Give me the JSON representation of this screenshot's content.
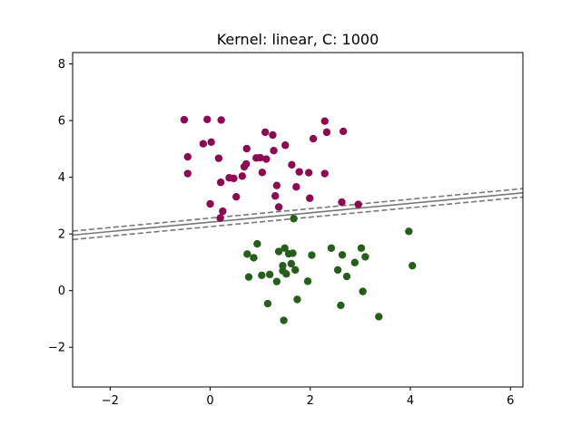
{
  "chart_data": {
    "type": "scatter",
    "title": "Kernel: linear, C: 1000",
    "xlabel": "",
    "ylabel": "",
    "xlim": [
      -2.75,
      6.25
    ],
    "ylim": [
      -3.4,
      8.4
    ],
    "x_ticks": [
      -2,
      0,
      2,
      4,
      6
    ],
    "y_ticks": [
      -2,
      0,
      2,
      4,
      6,
      8
    ],
    "x_tick_labels": [
      "−2",
      "0",
      "2",
      "4",
      "6"
    ],
    "y_tick_labels": [
      "−2",
      "0",
      "2",
      "4",
      "6",
      "8"
    ],
    "grid": false,
    "series": [
      {
        "color": "#8b0a50",
        "points": [
          [
            -0.52,
            6.03
          ],
          [
            -0.06,
            6.04
          ],
          [
            0.22,
            6.02
          ],
          [
            -0.45,
            4.72
          ],
          [
            -0.14,
            5.18
          ],
          [
            0.02,
            5.24
          ],
          [
            -0.45,
            4.13
          ],
          [
            0.17,
            4.67
          ],
          [
            0.0,
            3.06
          ],
          [
            0.21,
            3.82
          ],
          [
            0.25,
            2.8
          ],
          [
            0.2,
            2.56
          ],
          [
            0.38,
            3.98
          ],
          [
            0.47,
            3.96
          ],
          [
            0.52,
            3.31
          ],
          [
            0.64,
            4.04
          ],
          [
            0.68,
            4.37
          ],
          [
            0.73,
            5.01
          ],
          [
            0.72,
            4.47
          ],
          [
            0.92,
            4.68
          ],
          [
            1.0,
            4.69
          ],
          [
            1.12,
            4.64
          ],
          [
            1.1,
            5.59
          ],
          [
            1.04,
            4.17
          ],
          [
            1.25,
            5.49
          ],
          [
            1.27,
            4.94
          ],
          [
            1.3,
            3.34
          ],
          [
            1.33,
            3.71
          ],
          [
            1.37,
            2.95
          ],
          [
            1.5,
            5.13
          ],
          [
            1.63,
            4.44
          ],
          [
            1.72,
            3.66
          ],
          [
            1.78,
            4.19
          ],
          [
            1.97,
            4.16
          ],
          [
            1.99,
            3.26
          ],
          [
            2.06,
            5.36
          ],
          [
            2.29,
            5.98
          ],
          [
            2.33,
            5.59
          ],
          [
            2.29,
            4.13
          ],
          [
            2.66,
            5.62
          ],
          [
            2.63,
            3.12
          ],
          [
            2.96,
            3.04
          ]
        ]
      },
      {
        "color": "#275e1c",
        "points": [
          [
            1.67,
            2.54
          ],
          [
            0.74,
            1.29
          ],
          [
            0.94,
            1.65
          ],
          [
            0.87,
            1.16
          ],
          [
            0.77,
            0.48
          ],
          [
            1.03,
            0.54
          ],
          [
            1.19,
            0.57
          ],
          [
            1.15,
            -0.46
          ],
          [
            1.33,
            0.32
          ],
          [
            1.37,
            1.38
          ],
          [
            1.45,
            0.88
          ],
          [
            1.49,
            1.5
          ],
          [
            1.45,
            0.7
          ],
          [
            1.52,
            0.59
          ],
          [
            1.57,
            1.3
          ],
          [
            1.62,
            0.95
          ],
          [
            1.65,
            1.32
          ],
          [
            1.7,
            0.73
          ],
          [
            1.74,
            -0.31
          ],
          [
            1.47,
            -1.05
          ],
          [
            1.95,
            0.33
          ],
          [
            2.03,
            1.25
          ],
          [
            2.42,
            1.5
          ],
          [
            2.55,
            0.73
          ],
          [
            2.64,
            1.26
          ],
          [
            2.61,
            -0.52
          ],
          [
            2.73,
            0.5
          ],
          [
            2.89,
            0.99
          ],
          [
            3.02,
            1.5
          ],
          [
            3.05,
            -0.03
          ],
          [
            3.1,
            1.19
          ],
          [
            3.37,
            -0.92
          ],
          [
            3.97,
            2.09
          ],
          [
            4.04,
            0.88
          ]
        ]
      }
    ],
    "lines": [
      {
        "style": "dashed",
        "color": "#777777",
        "points": [
          [
            -2.75,
            2.1
          ],
          [
            6.25,
            3.6
          ]
        ]
      },
      {
        "style": "solid",
        "color": "#777777",
        "points": [
          [
            -2.75,
            1.96
          ],
          [
            6.25,
            3.45
          ]
        ]
      },
      {
        "style": "dashed",
        "color": "#777777",
        "points": [
          [
            -2.75,
            1.8
          ],
          [
            6.25,
            3.3
          ]
        ]
      }
    ]
  }
}
